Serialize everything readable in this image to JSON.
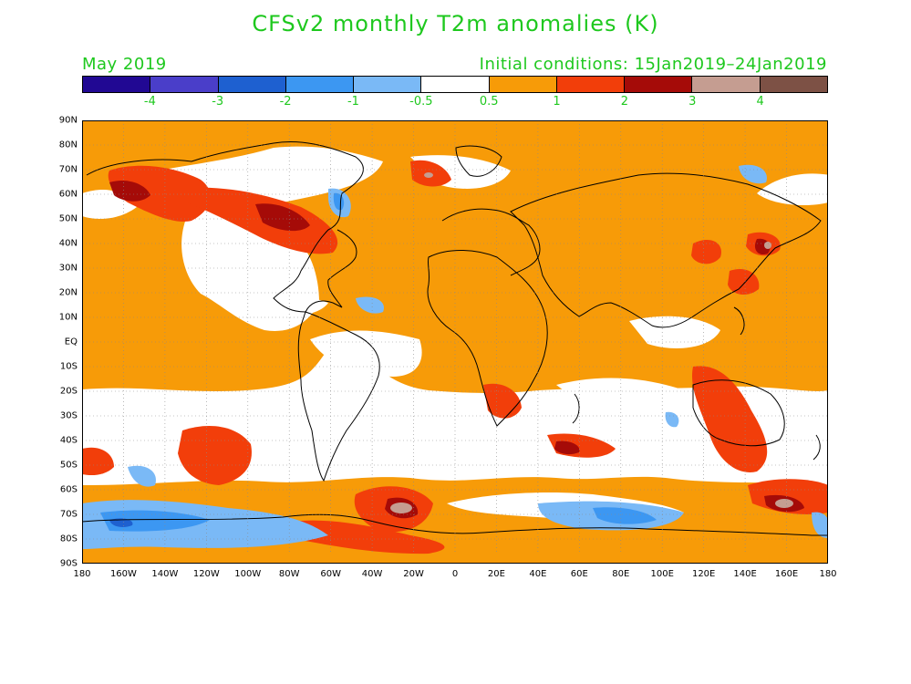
{
  "title": "CFSv2 monthly T2m anomalies (K)",
  "forecast_month": "May 2019",
  "initial_conditions": "Initial conditions: 15Jan2019–24Jan2019",
  "colorbar": {
    "colors": [
      "#210893",
      "#4a3ec9",
      "#1e60d0",
      "#3c97f2",
      "#7ab9f6",
      "#ffffff",
      "#f79b08",
      "#f23e0a",
      "#a50b08",
      "#c59d91",
      "#7d5145"
    ],
    "labels": [
      "-4",
      "-3",
      "-2",
      "-1",
      "-0.5",
      "0.5",
      "1",
      "2",
      "3",
      "4"
    ]
  },
  "axes": {
    "lat_labels": [
      "90N",
      "80N",
      "70N",
      "60N",
      "50N",
      "40N",
      "30N",
      "20N",
      "10N",
      "EQ",
      "10S",
      "20S",
      "30S",
      "40S",
      "50S",
      "60S",
      "70S",
      "80S",
      "90S"
    ],
    "lon_labels": [
      "180",
      "160W",
      "140W",
      "120W",
      "100W",
      "80W",
      "60W",
      "40W",
      "20W",
      "0",
      "20E",
      "40E",
      "60E",
      "80E",
      "100E",
      "120E",
      "140E",
      "160E",
      "180"
    ]
  },
  "map": {
    "background": "#ffffff",
    "land_outline_color": "#000000",
    "grid": true
  }
}
